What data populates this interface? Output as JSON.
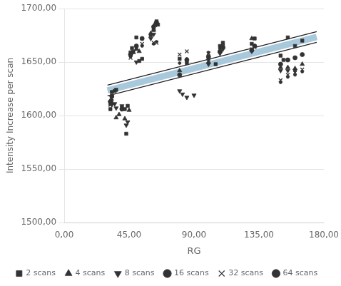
{
  "chart_data": {
    "type": "scatter",
    "x_label": "RG",
    "y_label": "Intensity Increase per scan",
    "xlim": [
      0,
      180
    ],
    "ylim": [
      1500,
      1700
    ],
    "xticks": [
      {
        "value": 0,
        "label": "0,00"
      },
      {
        "value": 45,
        "label": "45,00"
      },
      {
        "value": 90,
        "label": "90,00"
      },
      {
        "value": 135,
        "label": "135,00"
      },
      {
        "value": 180,
        "label": "180,00"
      }
    ],
    "yticks": [
      {
        "value": 1500,
        "label": "1500,00"
      },
      {
        "value": 1550,
        "label": "1550,00"
      },
      {
        "value": 1600,
        "label": "1600,00"
      },
      {
        "value": 1650,
        "label": "1650,00"
      },
      {
        "value": 1700,
        "label": "1700,00"
      }
    ],
    "grid": "y",
    "legend": "bottom",
    "series": [
      {
        "type": "line",
        "color": "#a8c8dc",
        "line_style": "solid",
        "x": [
          30,
          175
        ],
        "values": [
          1623.35,
          1673.375
        ]
      },
      {
        "type": "line",
        "color": "#222222",
        "line_style": "solid",
        "x": [
          30,
          175
        ],
        "values": [
          1618.35,
          1668.375
        ]
      },
      {
        "type": "line",
        "color": "#222222",
        "line_style": "solid",
        "x": [
          30,
          175
        ],
        "values": [
          1628.35,
          1678.375
        ]
      },
      {
        "name": "2 scans",
        "type": "scatter",
        "marker": "square",
        "color": "#333333",
        "x": [
          32,
          32,
          33,
          33,
          35,
          36,
          40,
          42,
          43,
          44,
          46,
          47,
          50,
          52,
          54,
          60,
          62,
          64,
          65,
          80,
          85,
          100,
          105,
          108,
          110,
          130,
          132,
          150,
          152,
          155,
          160,
          165
        ],
        "values": [
          1611,
          1606,
          1618,
          1622,
          1623,
          1624,
          1607,
          1606,
          1583,
          1609,
          1659,
          1663,
          1673,
          1651,
          1653,
          1675,
          1680,
          1688,
          1685,
          1653,
          1649,
          1653,
          1648,
          1665,
          1668,
          1667,
          1672,
          1656,
          1652,
          1673,
          1665,
          1670
        ]
      },
      {
        "name": "4 scans",
        "type": "scatter",
        "marker": "triangle-up",
        "color": "#333333",
        "x": [
          32,
          33,
          36,
          38,
          42,
          45,
          48,
          50,
          52,
          60,
          62,
          63,
          80,
          100,
          108,
          110,
          130,
          150,
          155,
          160,
          165
        ],
        "values": [
          1614,
          1612,
          1598,
          1601,
          1597,
          1605,
          1659,
          1662,
          1660,
          1677,
          1680,
          1686,
          1642,
          1650,
          1660,
          1664,
          1672,
          1645,
          1645,
          1644,
          1648
        ]
      },
      {
        "name": "8 scans",
        "type": "scatter",
        "marker": "triangle-down",
        "color": "#333333",
        "x": [
          33,
          35,
          36,
          40,
          43,
          44,
          46,
          48,
          50,
          60,
          62,
          64,
          80,
          82,
          85,
          90,
          100,
          108,
          110,
          130,
          150,
          155,
          160
        ],
        "values": [
          1610,
          1611,
          1607,
          1609,
          1591,
          1594,
          1656,
          1660,
          1650,
          1672,
          1676,
          1685,
          1623,
          1620,
          1617,
          1619,
          1648,
          1658,
          1662,
          1660,
          1642,
          1642,
          1642
        ]
      },
      {
        "name": "16 scans",
        "type": "scatter",
        "marker": "circle",
        "color": "#333333",
        "x": [
          32,
          33,
          40,
          46,
          50,
          54,
          62,
          64,
          80,
          85,
          100,
          108,
          110,
          130,
          132,
          150,
          155,
          160,
          165
        ],
        "values": [
          1613,
          1618,
          1606,
          1657,
          1665,
          1672,
          1683,
          1687,
          1638,
          1652,
          1655,
          1660,
          1664,
          1661,
          1665,
          1648,
          1652,
          1654,
          1657
        ]
      },
      {
        "name": "32 scans",
        "type": "scatter",
        "marker": "x",
        "color": "#333333",
        "x": [
          32,
          33,
          40,
          46,
          50,
          54,
          62,
          64,
          80,
          85,
          100,
          108,
          110,
          130,
          132,
          150,
          155,
          160,
          165
        ],
        "values": [
          1610,
          1616,
          1607,
          1654,
          1663,
          1667,
          1668,
          1668,
          1657,
          1660,
          1658,
          1664,
          1665,
          1662,
          1664,
          1633,
          1638,
          1640,
          1643
        ]
      },
      {
        "name": "64 scans",
        "type": "scatter",
        "marker": "dot",
        "color": "#333333",
        "x": [
          32,
          33,
          40,
          46,
          50,
          54,
          62,
          64,
          80,
          85,
          100,
          108,
          110,
          130,
          132,
          150,
          155,
          160,
          165
        ],
        "values": [
          1612,
          1614,
          1606,
          1655,
          1663,
          1665,
          1667,
          1669,
          1649,
          1653,
          1659,
          1663,
          1665,
          1662,
          1665,
          1631,
          1636,
          1638,
          1641
        ]
      }
    ]
  }
}
